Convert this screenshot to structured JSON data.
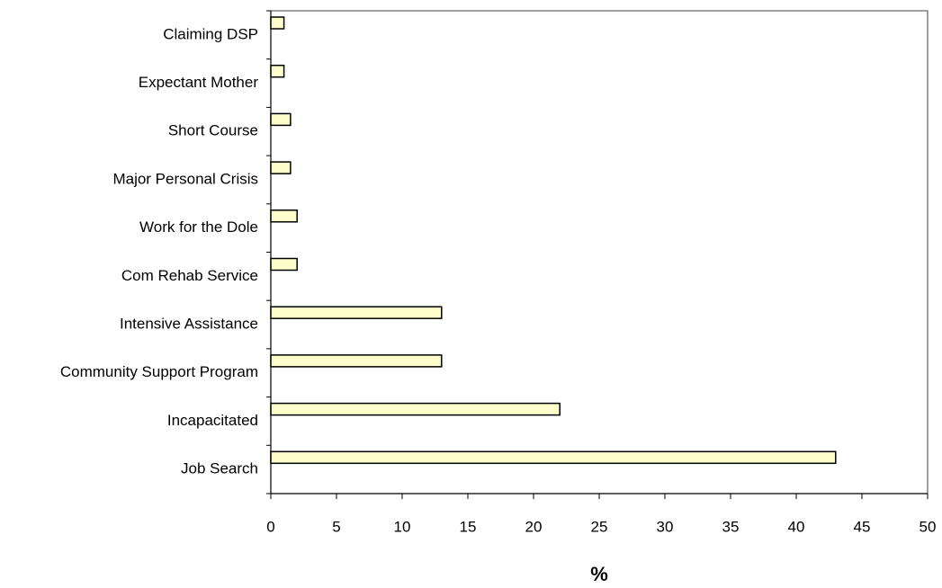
{
  "chart_data": {
    "type": "bar",
    "orientation": "horizontal",
    "categories": [
      "Claiming DSP",
      "Expectant Mother",
      "Short Course",
      "Major Personal Crisis",
      "Work for the Dole",
      "Com Rehab Service",
      "Intensive Assistance",
      "Community Support Program",
      "Incapacitated",
      "Job Search"
    ],
    "values": [
      1,
      1,
      1.5,
      1.5,
      2,
      2,
      13,
      13,
      22,
      43
    ],
    "color": "#ffffcc",
    "x_label": "%",
    "xlim": [
      0,
      50
    ],
    "xticks": [
      0,
      5,
      10,
      15,
      20,
      25,
      30,
      35,
      40,
      45,
      50
    ],
    "grid": false
  }
}
